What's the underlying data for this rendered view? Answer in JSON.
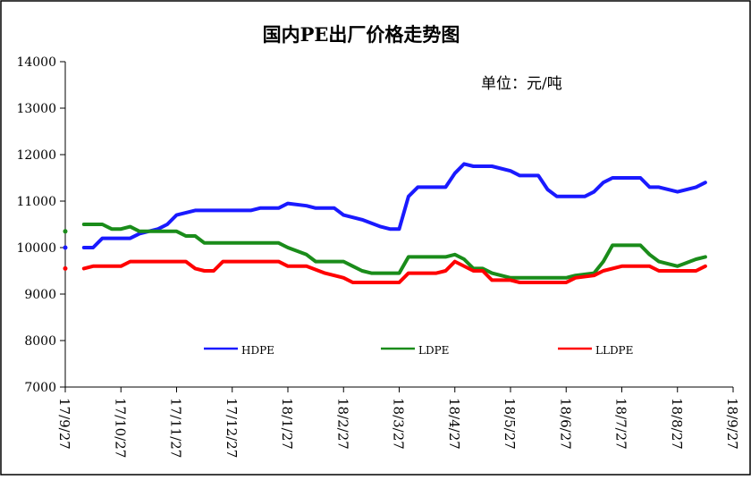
{
  "chart_data": {
    "type": "line",
    "title": "国内PE出厂价格走势图",
    "unit_note": "单位：元/吨",
    "xlabel": "",
    "ylabel": "",
    "ylim": [
      7000,
      14000
    ],
    "yticks": [
      "7000",
      "8000",
      "9000",
      "10000",
      "11000",
      "12000",
      "13000",
      "14000"
    ],
    "xticks": [
      "17/9/27",
      "17/10/27",
      "17/11/27",
      "17/12/27",
      "18/1/27",
      "18/2/27",
      "18/3/27",
      "18/4/27",
      "18/5/27",
      "18/6/27",
      "18/7/27",
      "18/8/27",
      "18/9/27"
    ],
    "grid": false,
    "legend_position": "bottom-inside",
    "series": [
      {
        "name": "HDPE",
        "color": "#1a1aff",
        "points": [
          [
            0,
            10000
          ],
          [
            1,
            10000
          ],
          [
            1.5,
            10000
          ],
          [
            2,
            10200
          ],
          [
            3.5,
            10200
          ],
          [
            4,
            10300
          ],
          [
            5,
            10400
          ],
          [
            5.5,
            10500
          ],
          [
            6,
            10700
          ],
          [
            7,
            10800
          ],
          [
            7.5,
            10800
          ],
          [
            8,
            10800
          ],
          [
            10,
            10800
          ],
          [
            10.5,
            10850
          ],
          [
            11.5,
            10850
          ],
          [
            12,
            10950
          ],
          [
            13,
            10900
          ],
          [
            13.5,
            10850
          ],
          [
            14.5,
            10850
          ],
          [
            15,
            10700
          ],
          [
            16,
            10600
          ],
          [
            17,
            10450
          ],
          [
            17.5,
            10400
          ],
          [
            18,
            10400
          ],
          [
            18.5,
            11100
          ],
          [
            19,
            11300
          ],
          [
            20,
            11300
          ],
          [
            20.5,
            11300
          ],
          [
            21,
            11600
          ],
          [
            21.5,
            11800
          ],
          [
            22,
            11750
          ],
          [
            23,
            11750
          ],
          [
            24,
            11650
          ],
          [
            24.5,
            11550
          ],
          [
            25.5,
            11550
          ],
          [
            26,
            11250
          ],
          [
            26.5,
            11100
          ],
          [
            28,
            11100
          ],
          [
            28.5,
            11200
          ],
          [
            29,
            11400
          ],
          [
            29.5,
            11500
          ],
          [
            31,
            11500
          ],
          [
            31.5,
            11300
          ],
          [
            32,
            11300
          ],
          [
            33,
            11200
          ],
          [
            34,
            11300
          ],
          [
            34.5,
            11400
          ]
        ]
      },
      {
        "name": "LDPE",
        "color": "#1a8c1a",
        "points": [
          [
            0,
            10350
          ],
          [
            1,
            10500
          ],
          [
            2,
            10500
          ],
          [
            2.5,
            10400
          ],
          [
            3,
            10400
          ],
          [
            3.5,
            10450
          ],
          [
            4,
            10350
          ],
          [
            5,
            10350
          ],
          [
            6,
            10350
          ],
          [
            6.5,
            10250
          ],
          [
            7,
            10250
          ],
          [
            7.5,
            10100
          ],
          [
            10.5,
            10100
          ],
          [
            11.5,
            10100
          ],
          [
            12,
            10000
          ],
          [
            13,
            9850
          ],
          [
            13.5,
            9700
          ],
          [
            15,
            9700
          ],
          [
            15.5,
            9600
          ],
          [
            16,
            9500
          ],
          [
            16.5,
            9450
          ],
          [
            17.5,
            9450
          ],
          [
            18,
            9450
          ],
          [
            18.5,
            9800
          ],
          [
            19,
            9800
          ],
          [
            20.5,
            9800
          ],
          [
            21,
            9850
          ],
          [
            21.5,
            9750
          ],
          [
            22,
            9550
          ],
          [
            22.5,
            9550
          ],
          [
            23,
            9450
          ],
          [
            23.5,
            9400
          ],
          [
            24,
            9350
          ],
          [
            25.5,
            9350
          ],
          [
            27,
            9350
          ],
          [
            27.5,
            9400
          ],
          [
            28.5,
            9450
          ],
          [
            29,
            9700
          ],
          [
            29.5,
            10050
          ],
          [
            31,
            10050
          ],
          [
            31.5,
            9850
          ],
          [
            32,
            9700
          ],
          [
            33,
            9600
          ],
          [
            34,
            9750
          ],
          [
            34.5,
            9800
          ]
        ]
      },
      {
        "name": "LLDPE",
        "color": "#ff0000",
        "points": [
          [
            0,
            9550
          ],
          [
            1,
            9550
          ],
          [
            1.5,
            9600
          ],
          [
            3,
            9600
          ],
          [
            3.5,
            9700
          ],
          [
            5,
            9700
          ],
          [
            6.5,
            9700
          ],
          [
            7,
            9550
          ],
          [
            7.5,
            9500
          ],
          [
            8,
            9500
          ],
          [
            8.5,
            9700
          ],
          [
            10,
            9700
          ],
          [
            11.5,
            9700
          ],
          [
            12,
            9600
          ],
          [
            13,
            9600
          ],
          [
            14,
            9450
          ],
          [
            15,
            9350
          ],
          [
            15.5,
            9250
          ],
          [
            17.5,
            9250
          ],
          [
            18,
            9250
          ],
          [
            18.5,
            9450
          ],
          [
            20,
            9450
          ],
          [
            20.5,
            9500
          ],
          [
            21,
            9700
          ],
          [
            22,
            9500
          ],
          [
            22.5,
            9500
          ],
          [
            23,
            9300
          ],
          [
            24,
            9300
          ],
          [
            24.5,
            9250
          ],
          [
            27,
            9250
          ],
          [
            27.5,
            9350
          ],
          [
            28.5,
            9400
          ],
          [
            29,
            9500
          ],
          [
            30,
            9600
          ],
          [
            31.5,
            9600
          ],
          [
            32,
            9500
          ],
          [
            33,
            9500
          ],
          [
            34,
            9500
          ],
          [
            34.5,
            9600
          ]
        ]
      }
    ]
  }
}
